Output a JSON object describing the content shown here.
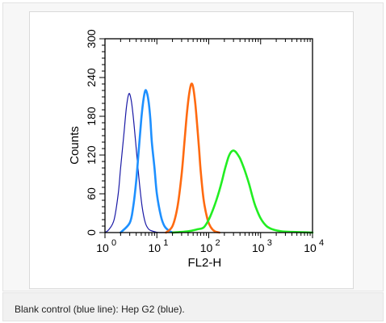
{
  "chart_data": {
    "type": "line",
    "xlabel": "FL2-H",
    "ylabel": "Counts",
    "x_scale": "log",
    "xlim": [
      1,
      10000
    ],
    "ylim": [
      0,
      300
    ],
    "x_ticks": [
      {
        "value": 1,
        "base": "10",
        "exp": "0"
      },
      {
        "value": 10,
        "base": "10",
        "exp": "1"
      },
      {
        "value": 100,
        "base": "10",
        "exp": "2"
      },
      {
        "value": 1000,
        "base": "10",
        "exp": "3"
      },
      {
        "value": 10000,
        "base": "10",
        "exp": "4"
      }
    ],
    "y_ticks": [
      {
        "value": 0,
        "label": "0"
      },
      {
        "value": 60,
        "label": "60"
      },
      {
        "value": 120,
        "label": "120"
      },
      {
        "value": 180,
        "label": "180"
      },
      {
        "value": 240,
        "label": "240"
      },
      {
        "value": 300,
        "label": "300"
      }
    ],
    "grid": false,
    "series": [
      {
        "color": "#1a1aa6",
        "stroke": 1.2,
        "x": [
          1.0,
          1.2,
          1.5,
          1.8,
          2.0,
          2.3,
          2.6,
          2.9,
          3.2,
          3.5,
          3.9,
          4.5,
          5.2,
          6.0,
          7.0,
          8.5,
          11,
          15
        ],
        "y": [
          0,
          5,
          20,
          60,
          100,
          150,
          195,
          215,
          205,
          180,
          140,
          85,
          40,
          15,
          5,
          2,
          0,
          0
        ]
      },
      {
        "color": "#1e90ff",
        "stroke": 2.6,
        "x": [
          2,
          3,
          3.5,
          4,
          4.5,
          5,
          5.5,
          6,
          6.5,
          7,
          7.5,
          8,
          9,
          10,
          12,
          14,
          17,
          20
        ],
        "y": [
          0,
          15,
          40,
          80,
          130,
          175,
          205,
          220,
          215,
          200,
          175,
          140,
          100,
          60,
          25,
          10,
          3,
          0
        ]
      },
      {
        "color": "#ff6a10",
        "stroke": 2.6,
        "x": [
          15,
          20,
          25,
          30,
          34,
          38,
          42,
          46,
          50,
          55,
          60,
          65,
          70,
          80,
          95,
          110,
          130,
          160
        ],
        "y": [
          0,
          10,
          40,
          90,
          140,
          185,
          215,
          230,
          225,
          200,
          165,
          130,
          95,
          50,
          20,
          8,
          2,
          0
        ]
      },
      {
        "color": "#22ee22",
        "stroke": 2.6,
        "x": [
          20,
          40,
          60,
          80,
          100,
          120,
          140,
          160,
          180,
          200,
          220,
          240,
          260,
          280,
          300,
          330,
          360,
          400,
          450,
          500,
          600,
          700,
          800,
          1000,
          1300,
          1700,
          2500,
          4000,
          10000
        ],
        "y": [
          0,
          2,
          5,
          8,
          20,
          35,
          50,
          65,
          80,
          95,
          107,
          117,
          123,
          126,
          127,
          125,
          121,
          115,
          105,
          95,
          75,
          55,
          40,
          22,
          10,
          5,
          2,
          1,
          0
        ]
      }
    ]
  },
  "caption": "Blank control (blue line): Hep G2 (blue)."
}
